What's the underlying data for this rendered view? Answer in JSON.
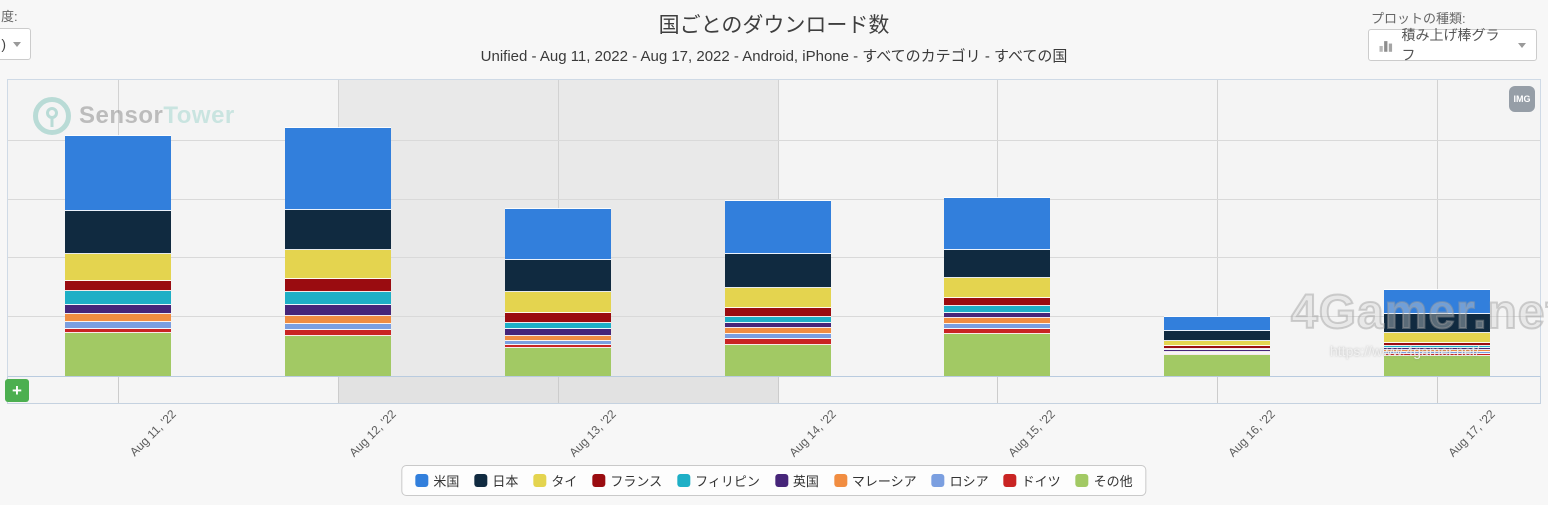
{
  "header": {
    "title": "国ごとのダウンロード数",
    "subtitle": "Unified - Aug 11, 2022 - Aug 17, 2022 - Android, iPhone - すべてのカテゴリ - すべての国",
    "granularity_control": {
      "label_fragment": "度:",
      "value_fragment": ")"
    },
    "plot_type_control": {
      "label": "プロットの種類:",
      "value": "積み上げ棒グラフ",
      "icon": "stacked-bar-chart-icon"
    }
  },
  "watermarks": {
    "sensor_tower": {
      "part_bold": "Sensor",
      "part_light": "Tower"
    },
    "img_badge": "IMG",
    "site_name": "4Gamer.net",
    "site_url": "https://www.4gamer.net/"
  },
  "navigator": {
    "add_button_label": "+"
  },
  "chart_data": {
    "type": "bar",
    "stacked": true,
    "title": "国ごとのダウンロード数",
    "subtitle": "Unified - Aug 11, 2022 - Aug 17, 2022 - Android, iPhone - すべてのカテゴリ - すべての国",
    "categories": [
      "Aug 11, '22",
      "Aug 12, '22",
      "Aug 13, '22",
      "Aug 14, '22",
      "Aug 15, '22",
      "Aug 16, '22",
      "Aug 17, '22"
    ],
    "xlabel": "",
    "ylabel": "",
    "y_axis_labels_visible": false,
    "value_unit": "relative height (no numeric y-axis labels shown in screenshot)",
    "ylim": [
      0,
      298
    ],
    "grid": true,
    "legend_position": "bottom",
    "plot_band_columns": [
      "Aug 12, '22",
      "Aug 13, '22"
    ],
    "series": [
      {
        "name": "米国",
        "color": "#327fdc",
        "values": [
          75,
          82,
          51,
          53,
          52,
          14,
          24
        ]
      },
      {
        "name": "日本",
        "color": "#102a40",
        "values": [
          43,
          40,
          32,
          34,
          28,
          10,
          19
        ]
      },
      {
        "name": "タイ",
        "color": "#e4d44f",
        "values": [
          27,
          29,
          21,
          20,
          20,
          5,
          10
        ]
      },
      {
        "name": "フランス",
        "color": "#9a0c10",
        "values": [
          10,
          13,
          10,
          9,
          8,
          3,
          3
        ]
      },
      {
        "name": "フィリピン",
        "color": "#1eafc6",
        "values": [
          14,
          13,
          6,
          6,
          7,
          1,
          2
        ]
      },
      {
        "name": "英国",
        "color": "#462579",
        "values": [
          9,
          11,
          7,
          5,
          5,
          2,
          2
        ]
      },
      {
        "name": "マレーシア",
        "color": "#f18d41",
        "values": [
          8,
          8,
          5,
          6,
          6,
          1,
          2
        ]
      },
      {
        "name": "ロシア",
        "color": "#7b9fe0",
        "values": [
          7,
          6,
          4,
          5,
          5,
          1,
          2
        ]
      },
      {
        "name": "ドイツ",
        "color": "#c92423",
        "values": [
          4,
          6,
          3,
          6,
          5,
          1,
          2
        ]
      },
      {
        "name": "その他",
        "color": "#a2c964",
        "values": [
          43,
          40,
          28,
          31,
          42,
          21,
          20
        ]
      }
    ]
  },
  "colors": {
    "page_bg": "#f7f7f7",
    "plot_bg": "#f4f4f4",
    "plot_band": "#e9e9e9",
    "gridline": "#d6d6d6",
    "chart_border": "#cfdae6",
    "axis_line": "#b9cbdf",
    "add_button_green": "#4caf50"
  }
}
